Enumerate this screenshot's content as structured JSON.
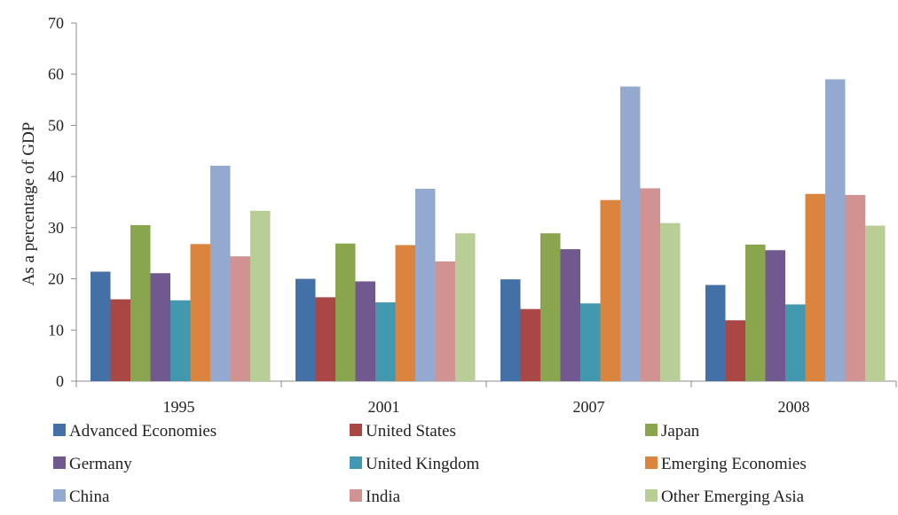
{
  "chart_data": {
    "type": "bar",
    "title": "",
    "xlabel": "",
    "ylabel": "As a percentage of GDP",
    "ylim": [
      0,
      70
    ],
    "yticks": [
      0,
      10,
      20,
      30,
      40,
      50,
      60,
      70
    ],
    "categories": [
      "1995",
      "2001",
      "2007",
      "2008"
    ],
    "grid": false,
    "legend_position": "bottom",
    "series": [
      {
        "name": "Advanced Economies",
        "color": "#4470A8",
        "values": [
          21.4,
          20.0,
          19.9,
          18.8
        ]
      },
      {
        "name": "United States",
        "color": "#AA4643",
        "values": [
          16.0,
          16.4,
          14.1,
          11.9
        ]
      },
      {
        "name": "Japan",
        "color": "#89A54E",
        "values": [
          30.5,
          26.9,
          28.9,
          26.7
        ]
      },
      {
        "name": "Germany",
        "color": "#71588F",
        "values": [
          21.1,
          19.5,
          25.8,
          25.6
        ]
      },
      {
        "name": "United Kingdom",
        "color": "#4198AF",
        "values": [
          15.8,
          15.4,
          15.2,
          15.0
        ]
      },
      {
        "name": "Emerging Economies",
        "color": "#DB843D",
        "values": [
          26.8,
          26.6,
          35.4,
          36.6
        ]
      },
      {
        "name": "China",
        "color": "#93A9CF",
        "values": [
          42.1,
          37.6,
          57.6,
          59.0
        ]
      },
      {
        "name": "India",
        "color": "#D19392",
        "values": [
          24.4,
          23.4,
          37.7,
          36.4
        ]
      },
      {
        "name": "Other Emerging Asia",
        "color": "#B9CD96",
        "values": [
          33.3,
          28.9,
          30.9,
          30.4
        ]
      }
    ]
  }
}
